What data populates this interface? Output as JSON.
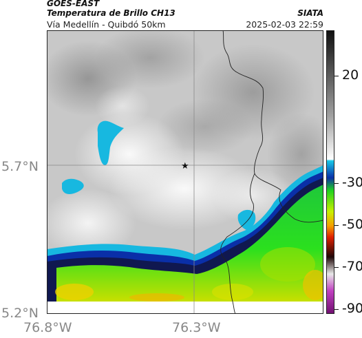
{
  "header": {
    "title": "GOES-EAST",
    "product": "Temperatura de Brillo CH13",
    "subtitle": "Vía Medellín - Quibdó 50km",
    "org": "SIATA",
    "datetime": "2025-02-03 22:59"
  },
  "map": {
    "lat_labels": [
      "5.7°N",
      "5.2°N"
    ],
    "lon_labels": [
      "76.8°W",
      "76.3°W"
    ],
    "marker": "star-marker"
  },
  "colorbar": {
    "labels": [
      "20",
      "-30",
      "-50",
      "-70",
      "-90"
    ],
    "colors": {
      "warm_gray": "#f2f2f2",
      "cyan": "#17b8e0",
      "blue": "#0a2fa8",
      "navy": "#101850",
      "green": "#1fd21f",
      "yellow": "#f0f000",
      "orange": "#f5a000",
      "red": "#e02000",
      "magenta": "#c040c0"
    }
  }
}
